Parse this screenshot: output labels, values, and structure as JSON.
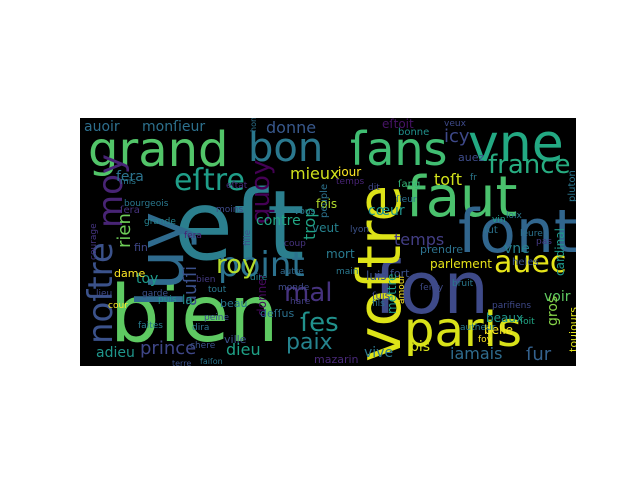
{
  "palette": {
    "background": "#000000",
    "page": "#ffffff"
  },
  "words": [
    {
      "text": "eſt",
      "color": "#2b7f8e"
    },
    {
      "text": "bien",
      "color": "#5ec962"
    },
    {
      "text": "luy",
      "color": "#2f6b8e"
    },
    {
      "text": "grand",
      "color": "#52c569"
    },
    {
      "text": "faut",
      "color": "#4ac16d"
    },
    {
      "text": "ſans",
      "color": "#40bd72"
    },
    {
      "text": "vne",
      "color": "#23a983"
    },
    {
      "text": "bon",
      "color": "#2a788e"
    },
    {
      "text": "ſont",
      "color": "#31668e"
    },
    {
      "text": "ſon",
      "color": "#3e4a89"
    },
    {
      "text": "voſtre",
      "color": "#dde318"
    },
    {
      "text": "paris",
      "color": "#d8e219"
    },
    {
      "text": "auec",
      "color": "#e5e419"
    },
    {
      "text": "noſtre",
      "color": "#3b528b"
    },
    {
      "text": "point",
      "color": "#2c728e"
    },
    {
      "text": "moy",
      "color": "#482475"
    },
    {
      "text": "france",
      "color": "#27ad81"
    },
    {
      "text": "eſtre",
      "color": "#1f9e89"
    },
    {
      "text": "mal",
      "color": "#46327e"
    },
    {
      "text": "roy",
      "color": "#b5de2b"
    },
    {
      "text": "quoy",
      "color": "#440154"
    },
    {
      "text": "ſes",
      "color": "#21918c"
    },
    {
      "text": "paix",
      "color": "#25838e"
    },
    {
      "text": "icy",
      "color": "#3e4989"
    },
    {
      "text": "donne",
      "color": "#38588c"
    },
    {
      "text": "auoir",
      "color": "#2e6f8e"
    },
    {
      "text": "monſieur",
      "color": "#2d718e"
    },
    {
      "text": "fera",
      "color": "#2c738e"
    },
    {
      "text": "mieux",
      "color": "#d0e11c"
    },
    {
      "text": "trop",
      "color": "#20a486"
    },
    {
      "text": "contre",
      "color": "#22a785"
    },
    {
      "text": "temps",
      "color": "#433e85"
    },
    {
      "text": "voir",
      "color": "#5ec962"
    },
    {
      "text": "gros",
      "color": "#87d549"
    },
    {
      "text": "ſur",
      "color": "#34618d"
    },
    {
      "text": "iamais",
      "color": "#2f6c8e"
    },
    {
      "text": "prince",
      "color": "#3f4788"
    },
    {
      "text": "dieu",
      "color": "#1fa187"
    },
    {
      "text": "adieu",
      "color": "#1f968b"
    },
    {
      "text": "vne",
      "color": "#26818e"
    },
    {
      "text": "bis",
      "color": "#dae319"
    },
    {
      "text": "vive",
      "color": "#2a768e"
    },
    {
      "text": "mazarin",
      "color": "#482878"
    },
    {
      "text": "eſtoit",
      "color": "#481467"
    },
    {
      "text": "toſt",
      "color": "#d2e21b"
    },
    {
      "text": "guerre",
      "color": "#2d708e"
    },
    {
      "text": "heles",
      "color": "#3a548c"
    },
    {
      "text": "cœur",
      "color": "#20928c"
    },
    {
      "text": "auſſi",
      "color": "#3b518b"
    },
    {
      "text": "rien",
      "color": "#6ece58"
    },
    {
      "text": "toy",
      "color": "#1e9b8a"
    },
    {
      "text": "beaux",
      "color": "#1f968b"
    },
    {
      "text": "belle",
      "color": "#fde725"
    },
    {
      "text": "toujours",
      "color": "#e2e418"
    },
    {
      "text": "parlement",
      "color": "#e7e419"
    },
    {
      "text": "cardinal",
      "color": "#1f988b"
    },
    {
      "text": "prendre",
      "color": "#2c728e"
    },
    {
      "text": "luis",
      "color": "#3b528b"
    },
    {
      "text": "veut",
      "color": "#26828e"
    },
    {
      "text": "mort",
      "color": "#297a8e"
    },
    {
      "text": "fort",
      "color": "#3b528b"
    },
    {
      "text": "fois",
      "color": "#b2dd2d"
    },
    {
      "text": "ſuis",
      "color": "#3f4889"
    },
    {
      "text": "auez",
      "color": "#3e4c8a"
    },
    {
      "text": "dame",
      "color": "#fde725"
    },
    {
      "text": "beau",
      "color": "#2a788e"
    },
    {
      "text": "ville",
      "color": "#3b528b"
    },
    {
      "text": "donner",
      "color": "#460a5d"
    },
    {
      "text": "mettre",
      "color": "#1f9f88"
    },
    {
      "text": "amour",
      "color": "#fde725"
    },
    {
      "text": "deſſus",
      "color": "#2c718e"
    },
    {
      "text": "fin",
      "color": "#3f4788"
    },
    {
      "text": "bonne",
      "color": "#21918c"
    },
    {
      "text": "iour",
      "color": "#fde725"
    },
    {
      "text": "fut",
      "color": "#2c738e"
    },
    {
      "text": "pluton",
      "color": "#2a768e"
    },
    {
      "text": "coup",
      "color": "#46337f"
    },
    {
      "text": "veux",
      "color": "#3e4a89"
    },
    {
      "text": "eſtat",
      "color": "#472c7a"
    },
    {
      "text": "fille",
      "color": "#3b528b"
    },
    {
      "text": "peuple",
      "color": "#2c728e"
    },
    {
      "text": "monde",
      "color": "#3e4a89"
    },
    {
      "text": "vin",
      "color": "#1f9e89"
    },
    {
      "text": "dira",
      "color": "#2c718e"
    },
    {
      "text": "mis",
      "color": "#2a788e"
    },
    {
      "text": "cour",
      "color": "#fde725"
    },
    {
      "text": "parifiens",
      "color": "#3e4989"
    },
    {
      "text": "faites",
      "color": "#287c8e"
    },
    {
      "text": "fera",
      "color": "#482173"
    },
    {
      "text": "dire",
      "color": "#26828e"
    },
    {
      "text": "chere",
      "color": "#3b528b"
    },
    {
      "text": "loix",
      "color": "#2a788e"
    },
    {
      "text": "la",
      "color": "#21918c"
    },
    {
      "text": "fils",
      "color": "#2c718e"
    },
    {
      "text": "courage",
      "color": "#453581"
    },
    {
      "text": "terre",
      "color": "#3b528b"
    },
    {
      "text": "faiſon",
      "color": "#2a768e"
    },
    {
      "text": "puis",
      "color": "#1f968b"
    },
    {
      "text": "hare",
      "color": "#433e85"
    },
    {
      "text": "foy",
      "color": "#fde725"
    },
    {
      "text": "ſeray",
      "color": "#3e4a89"
    },
    {
      "text": "main",
      "color": "#2a788e"
    },
    {
      "text": "ſera",
      "color": "#46327e"
    },
    {
      "text": "grande",
      "color": "#26818e"
    },
    {
      "text": "bien",
      "color": "#443a83"
    },
    {
      "text": "tout",
      "color": "#2a788e"
    },
    {
      "text": "peine",
      "color": "#3b528b"
    },
    {
      "text": "ſoit",
      "color": "#22a785"
    },
    {
      "text": "honneur",
      "color": "#2c728e"
    },
    {
      "text": "autre",
      "color": "#31688e"
    },
    {
      "text": "bruit",
      "color": "#2a788e"
    },
    {
      "text": "dit",
      "color": "#3f4788"
    },
    {
      "text": "ſieur",
      "color": "#2c718e"
    },
    {
      "text": "temps",
      "color": "#482475"
    },
    {
      "text": "ſang",
      "color": "#35b779"
    },
    {
      "text": "garde",
      "color": "#3b528b"
    },
    {
      "text": "vous",
      "color": "#2a788e"
    },
    {
      "text": "pas",
      "color": "#443983"
    },
    {
      "text": "moins",
      "color": "#3e4a89"
    },
    {
      "text": "autheur",
      "color": "#287d8e"
    },
    {
      "text": "bourgeois",
      "color": "#2a788e"
    },
    {
      "text": "lyon",
      "color": "#3b528b"
    },
    {
      "text": "leure",
      "color": "#2c718e"
    },
    {
      "text": "lieu",
      "color": "#3e4989"
    },
    {
      "text": "fr",
      "color": "#2a788e"
    }
  ]
}
